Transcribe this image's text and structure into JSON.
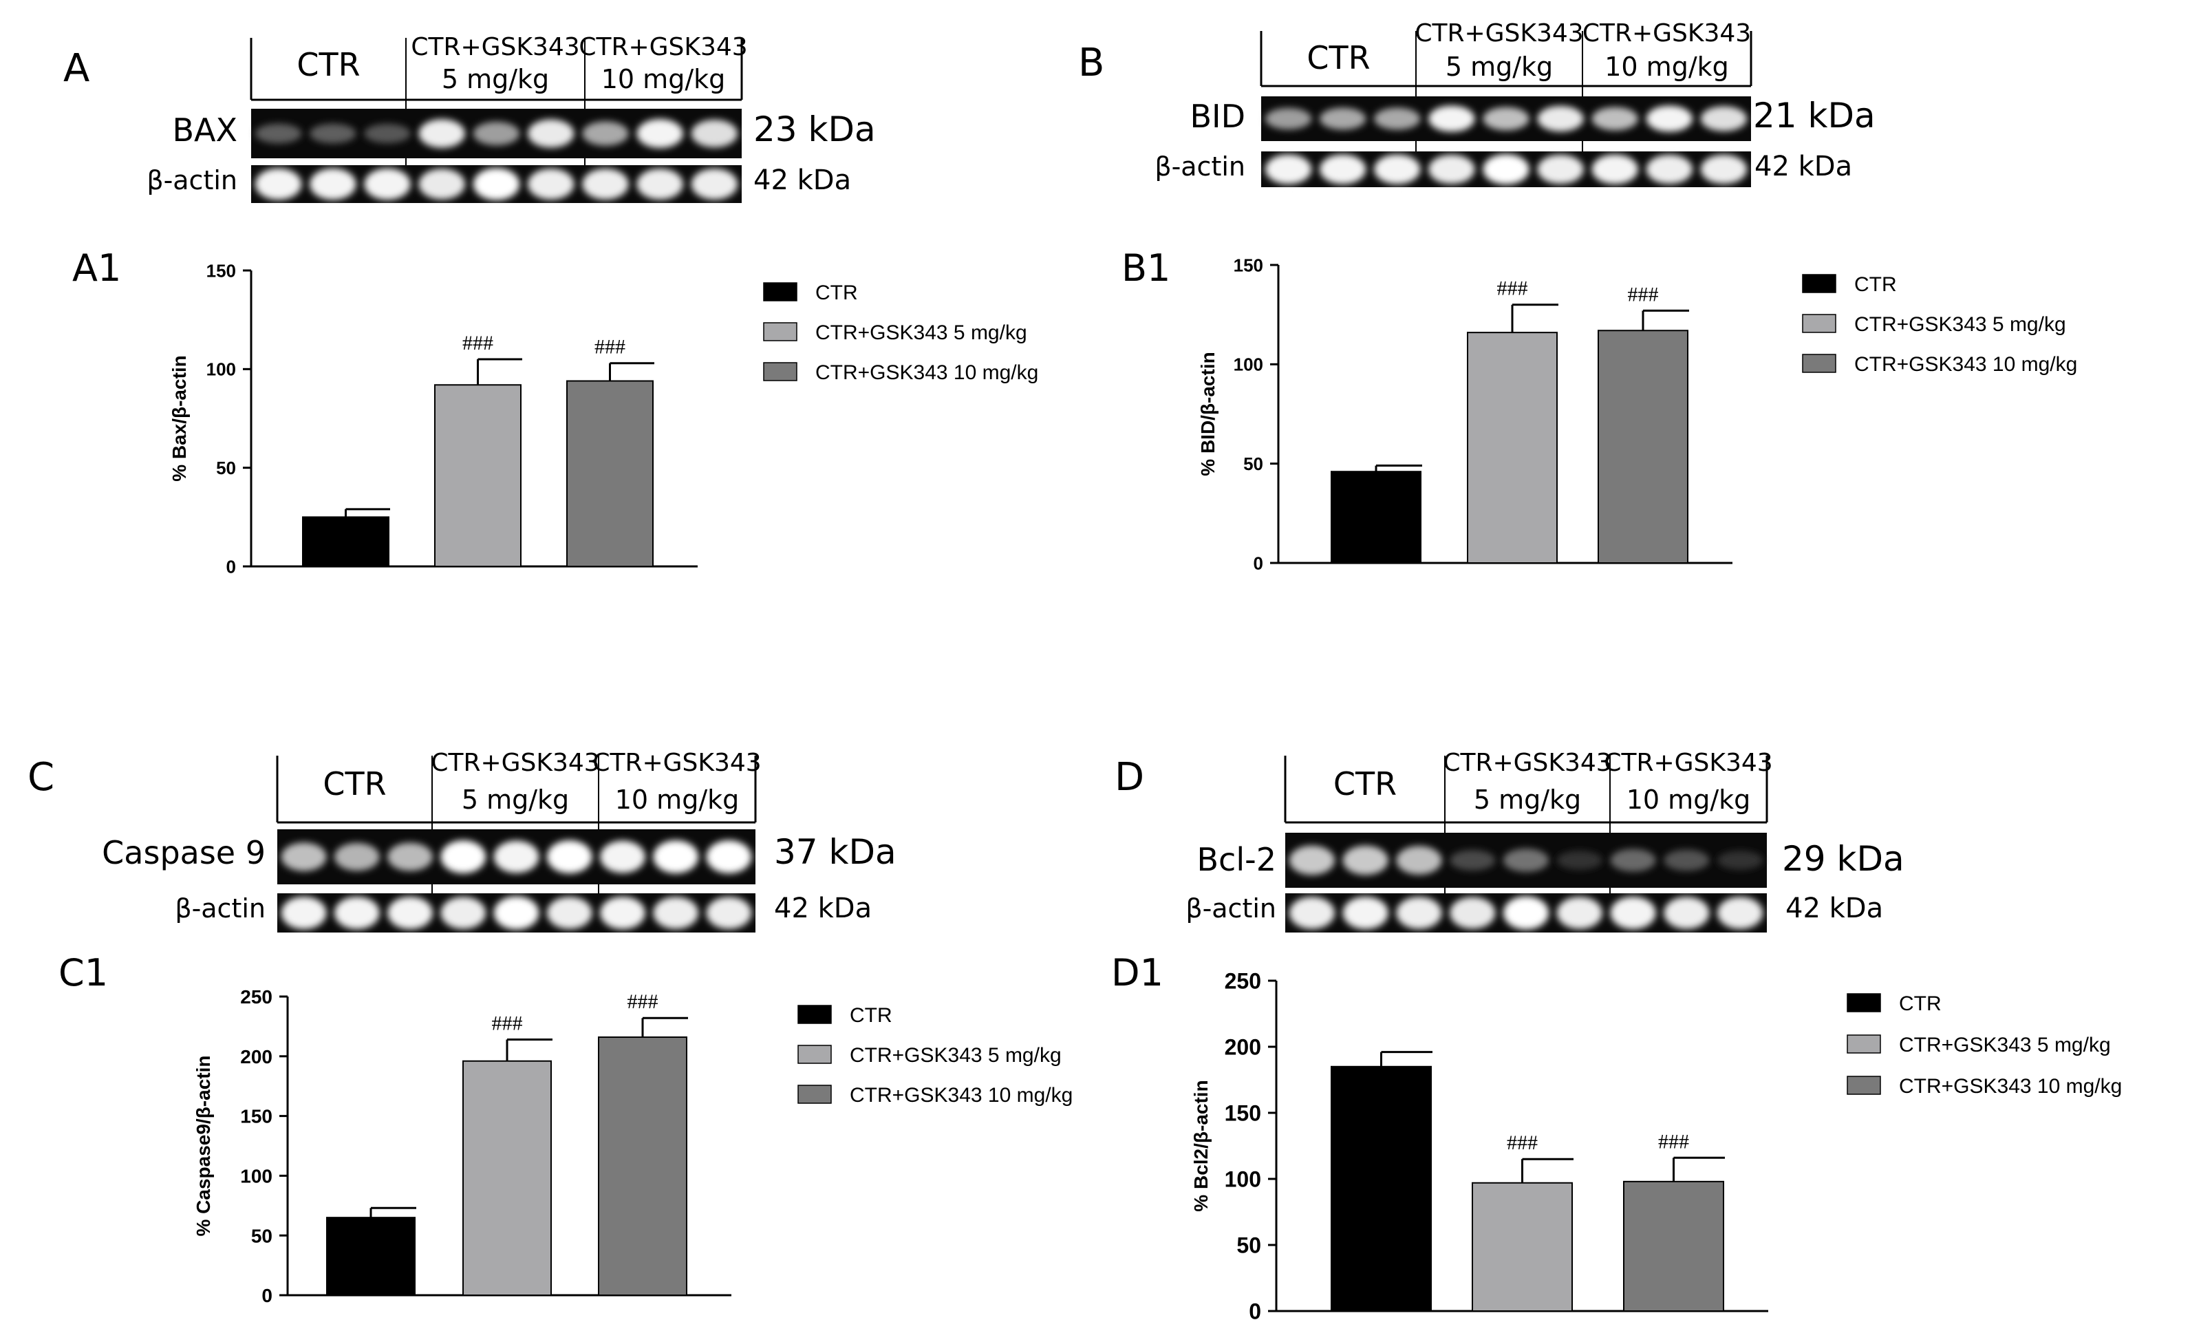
{
  "figure": {
    "panels": [
      {
        "id": "A",
        "blot": {
          "label": "A",
          "groups": [
            "CTR",
            "CTR+GSK343",
            "CTR+GSK343"
          ],
          "group_doses": [
            "",
            "5 mg/kg",
            "10 mg/kg"
          ],
          "protein": "BAX",
          "protein_kda": "23 kDa",
          "control": "β-actin",
          "control_kda": "42 kDa",
          "protein_intensity": [
            0.25,
            0.25,
            0.22,
            0.92,
            0.55,
            0.9,
            0.6,
            0.95,
            0.85
          ],
          "control_intensity": [
            0.95,
            0.95,
            0.95,
            0.9,
            1.0,
            0.92,
            0.92,
            0.92,
            0.92
          ]
        }
      },
      {
        "id": "B",
        "blot": {
          "label": "B",
          "groups": [
            "CTR",
            "CTR+GSK343",
            "CTR+GSK343"
          ],
          "group_doses": [
            "",
            "5 mg/kg",
            "10 mg/kg"
          ],
          "protein": "BID",
          "protein_kda": "21 kDa",
          "control": "β-actin",
          "control_kda": "42 kDa",
          "protein_intensity": [
            0.55,
            0.6,
            0.6,
            0.95,
            0.7,
            0.9,
            0.7,
            0.95,
            0.85
          ],
          "control_intensity": [
            0.95,
            0.95,
            0.95,
            0.92,
            1.0,
            0.92,
            0.95,
            0.92,
            0.92
          ]
        }
      },
      {
        "id": "C",
        "blot": {
          "label": "C",
          "groups": [
            "CTR",
            "CTR+GSK343",
            "CTR+GSK343"
          ],
          "group_doses": [
            "",
            "5 mg/kg",
            "10 mg/kg"
          ],
          "protein": "Caspase 9",
          "protein_kda": "37 kDa",
          "control": "β-actin",
          "control_kda": "42 kDa",
          "protein_intensity": [
            0.7,
            0.65,
            0.68,
            1.0,
            0.95,
            1.0,
            0.95,
            1.0,
            1.0
          ],
          "control_intensity": [
            0.95,
            0.95,
            0.95,
            0.92,
            1.0,
            0.92,
            0.95,
            0.92,
            0.92
          ]
        }
      },
      {
        "id": "D",
        "blot": {
          "label": "D",
          "groups": [
            "CTR",
            "CTR+GSK343",
            "CTR+GSK343"
          ],
          "group_doses": [
            "",
            "5 mg/kg",
            "10 mg/kg"
          ],
          "protein": "Bcl-2",
          "protein_kda": "29 kDa",
          "control": "β-actin",
          "control_kda": "42 kDa",
          "protein_intensity": [
            0.75,
            0.75,
            0.7,
            0.15,
            0.35,
            0.05,
            0.3,
            0.2,
            0.05
          ],
          "control_intensity": [
            0.92,
            0.95,
            0.92,
            0.9,
            1.0,
            0.92,
            0.95,
            0.92,
            0.92
          ]
        }
      }
    ]
  },
  "legend": {
    "entries": [
      "CTR",
      "CTR+GSK343  5 mg/kg",
      "CTR+GSK343 10 mg/kg"
    ],
    "colors": [
      "#000000",
      "#a9a9ab",
      "#7a7a7a"
    ]
  },
  "significance_marker": "###",
  "chart_data": [
    {
      "type": "bar",
      "panel": "A1",
      "categories": [
        "CTR",
        "CTR+GSK343  5 mg/kg",
        "CTR+GSK343 10 mg/kg"
      ],
      "values": [
        25,
        92,
        94
      ],
      "errors": [
        4,
        13,
        9
      ],
      "significance": [
        "",
        "###",
        "###"
      ],
      "ylabel": "% Bax/β-actin",
      "ylim": [
        0,
        150
      ],
      "yticks": [
        0,
        50,
        100,
        150
      ]
    },
    {
      "type": "bar",
      "panel": "B1",
      "categories": [
        "CTR",
        "CTR+GSK343  5 mg/kg",
        "CTR+GSK343 10 mg/kg"
      ],
      "values": [
        46,
        116,
        117
      ],
      "errors": [
        3,
        14,
        10
      ],
      "significance": [
        "",
        "###",
        "###"
      ],
      "ylabel": "% BID/β-actin",
      "ylim": [
        0,
        150
      ],
      "yticks": [
        0,
        50,
        100,
        150
      ]
    },
    {
      "type": "bar",
      "panel": "C1",
      "categories": [
        "CTR",
        "CTR+GSK343  5 mg/kg",
        "CTR+GSK343 10 mg/kg"
      ],
      "values": [
        65,
        196,
        216
      ],
      "errors": [
        8,
        18,
        16
      ],
      "significance": [
        "",
        "###",
        "###"
      ],
      "ylabel": "% Caspase9/β-actin",
      "ylim": [
        0,
        250
      ],
      "yticks": [
        0,
        50,
        100,
        150,
        200,
        250
      ]
    },
    {
      "type": "bar",
      "panel": "D1",
      "categories": [
        "CTR",
        "CTR+GSK343  5 mg/kg",
        "CTR+GSK343 10 mg/kg"
      ],
      "values": [
        185,
        97,
        98
      ],
      "errors": [
        11,
        18,
        18
      ],
      "significance": [
        "",
        "###",
        "###"
      ],
      "ylabel": "% Bcl2/β-actin",
      "ylim": [
        0,
        250
      ],
      "yticks": [
        0,
        50,
        100,
        150,
        200,
        250
      ]
    }
  ]
}
